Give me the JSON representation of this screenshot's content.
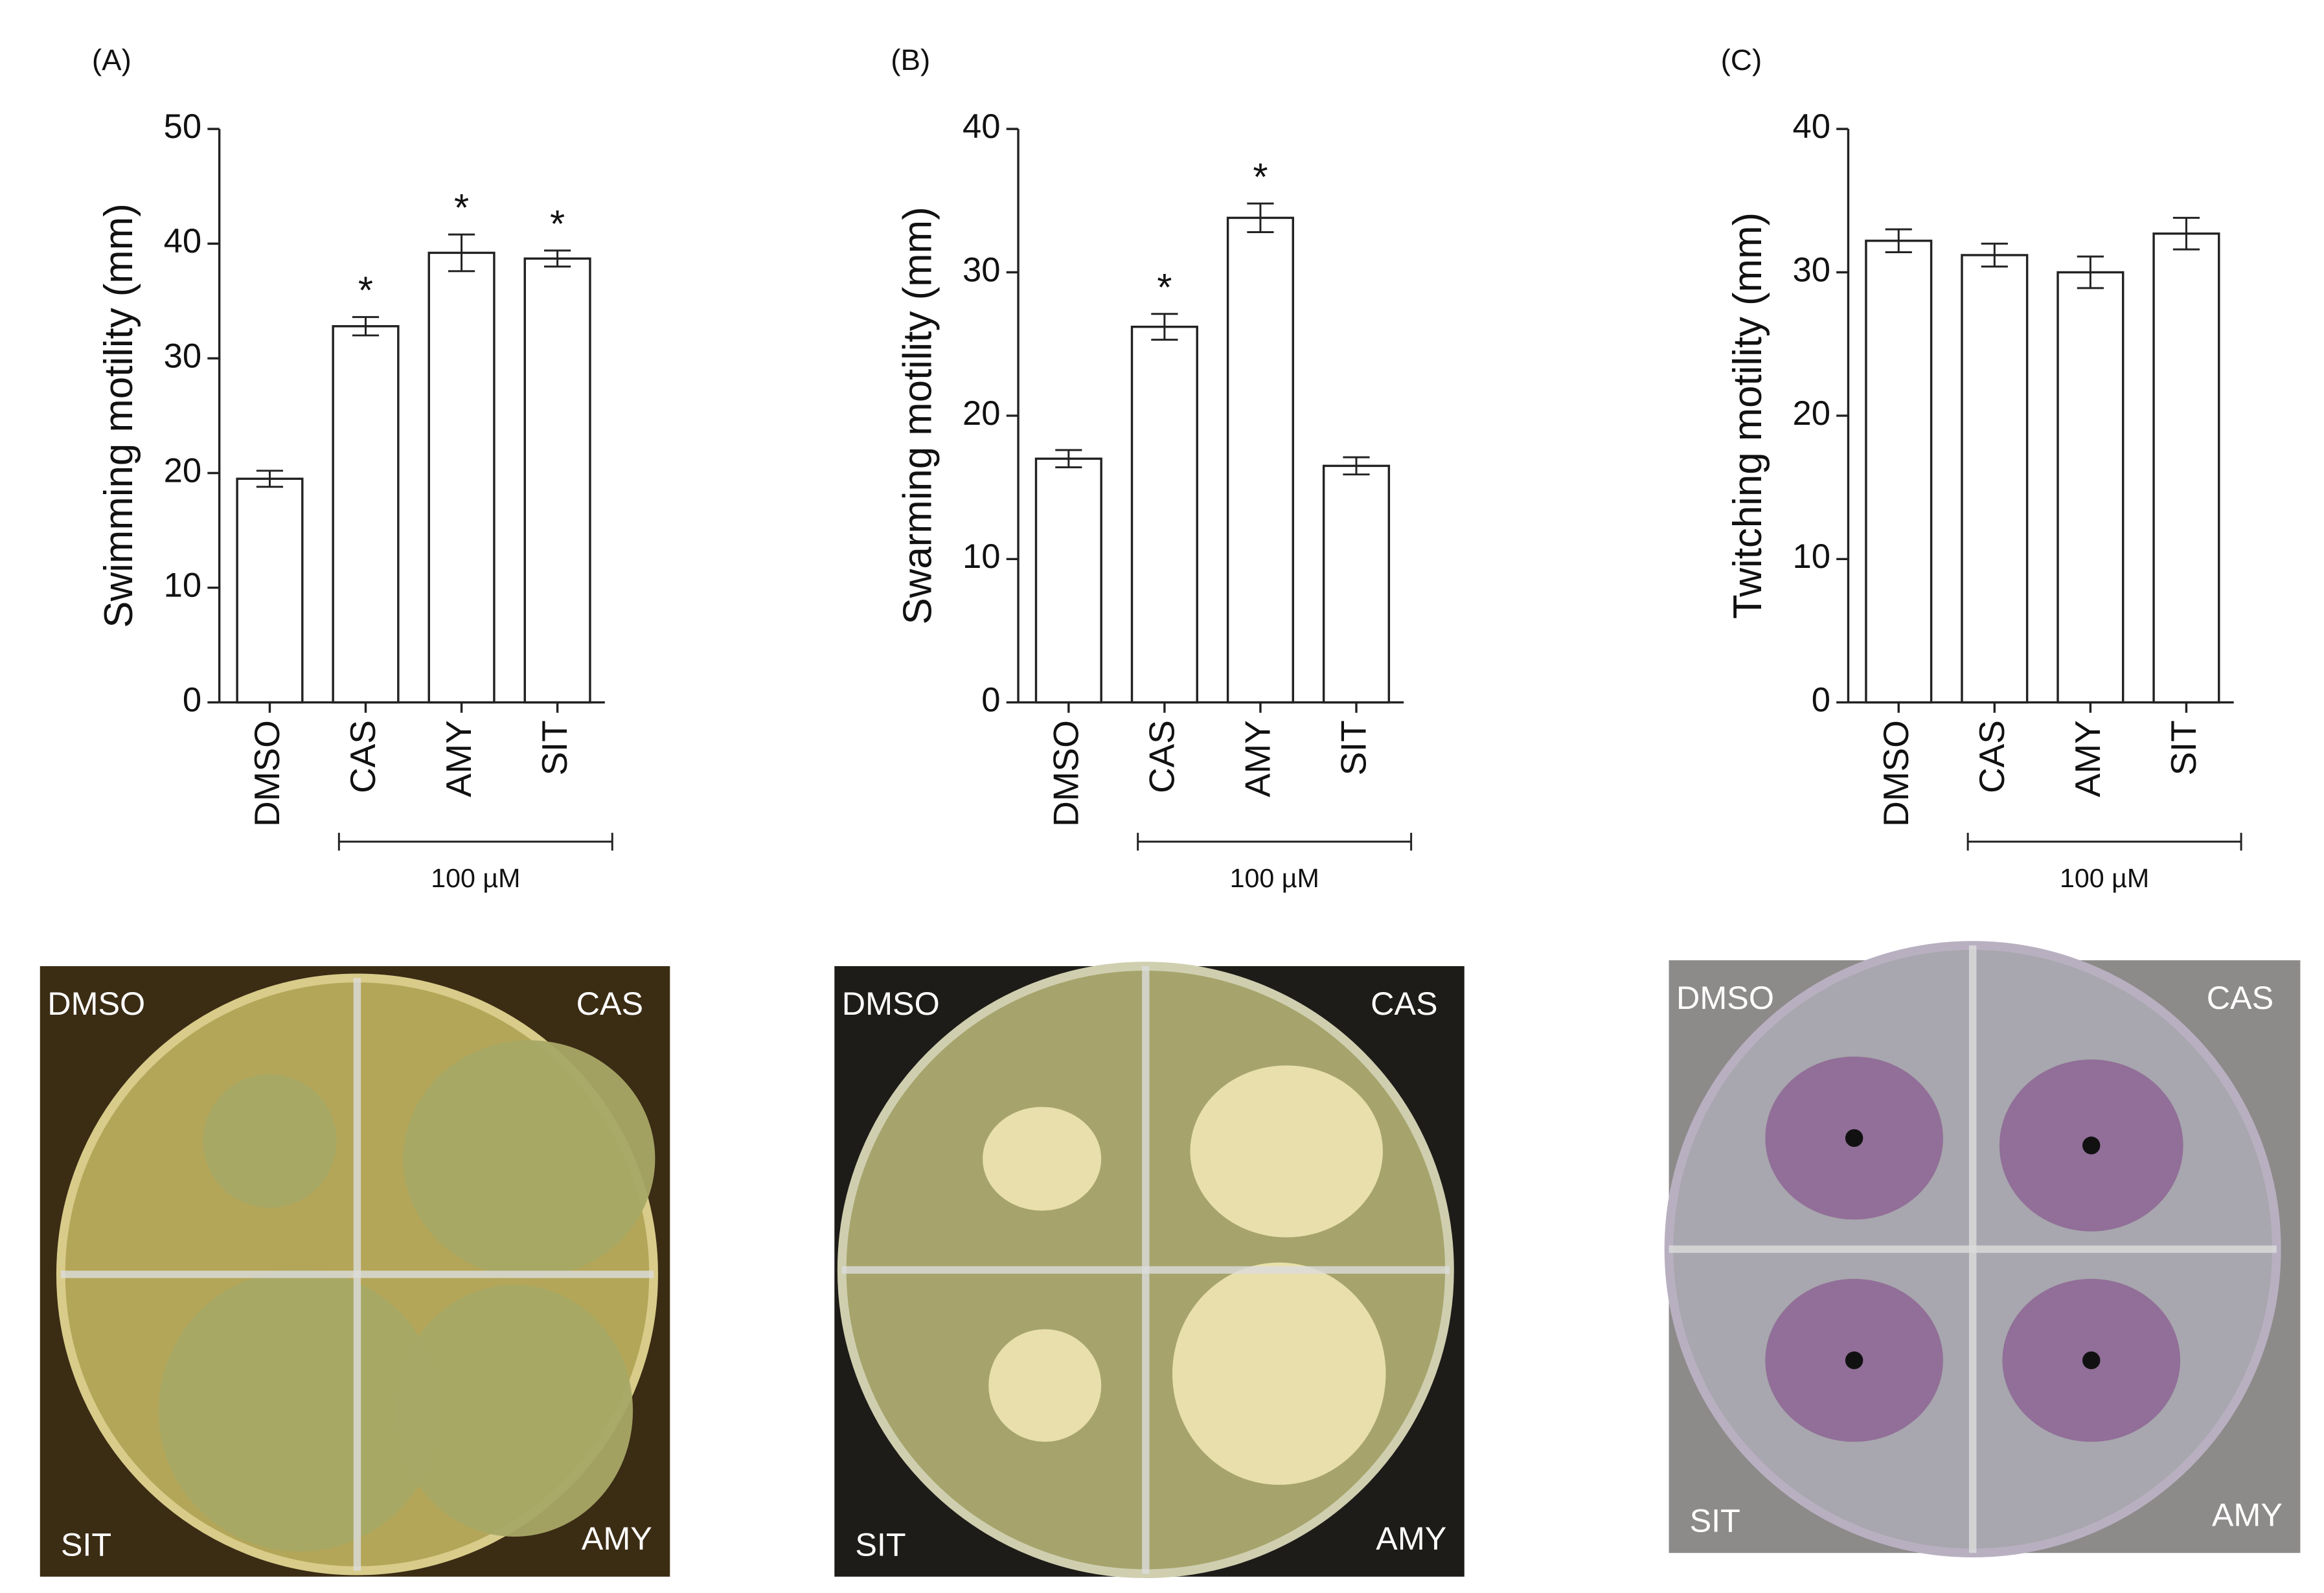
{
  "chart_data": [
    {
      "type": "bar",
      "panel_label": "(A)",
      "ylabel": "Swimming motility (mm)",
      "categories": [
        "DMSO",
        "CAS",
        "AMY",
        "SIT"
      ],
      "values": [
        19.5,
        32.8,
        39.2,
        38.7
      ],
      "errors": [
        0.7,
        0.8,
        1.6,
        0.7
      ],
      "significance": [
        null,
        "*",
        "*",
        "*"
      ],
      "bracket_label": "100 µM",
      "color": "#ffffff",
      "ylim": [
        0,
        50
      ],
      "yticks": [
        0,
        10,
        20,
        30,
        40,
        50
      ]
    },
    {
      "type": "bar",
      "panel_label": "(B)",
      "ylabel": "Swarming motility (mm)",
      "categories": [
        "DMSO",
        "CAS",
        "AMY",
        "SIT"
      ],
      "values": [
        17.0,
        26.2,
        33.8,
        16.5
      ],
      "errors": [
        0.6,
        0.9,
        1.0,
        0.6
      ],
      "significance": [
        null,
        "*",
        "*",
        null
      ],
      "bracket_label": "100 µM",
      "color": "#ffffff",
      "ylim": [
        0,
        40
      ],
      "yticks": [
        0,
        10,
        20,
        30,
        40
      ]
    },
    {
      "type": "bar",
      "panel_label": "(C)",
      "ylabel": "Twitching motility (mm)",
      "categories": [
        "DMSO",
        "CAS",
        "AMY",
        "SIT"
      ],
      "values": [
        32.2,
        31.2,
        30.0,
        32.7
      ],
      "errors": [
        0.8,
        0.8,
        1.1,
        1.1
      ],
      "significance": [
        null,
        null,
        null,
        null
      ],
      "bracket_label": "100 µM",
      "color": "#ffffff",
      "ylim": [
        0,
        40
      ],
      "yticks": [
        0,
        10,
        20,
        30,
        40
      ]
    }
  ],
  "photos": [
    {
      "labels": [
        "DMSO",
        "CAS",
        "SIT",
        "AMY"
      ]
    },
    {
      "labels": [
        "DMSO",
        "CAS",
        "SIT",
        "AMY"
      ]
    },
    {
      "labels": [
        "DMSO",
        "CAS",
        "SIT",
        "AMY"
      ]
    }
  ]
}
